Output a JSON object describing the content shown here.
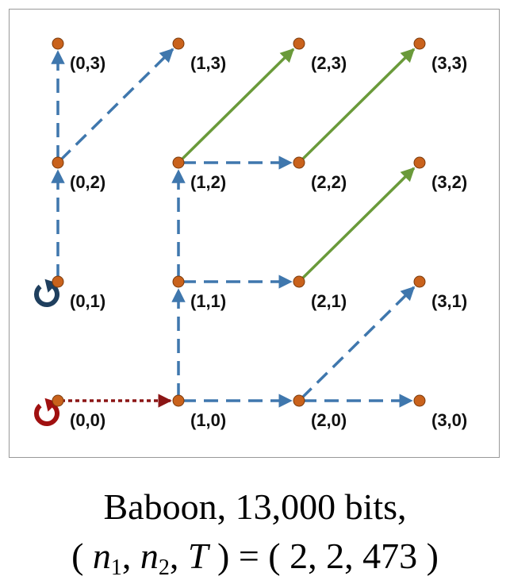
{
  "diagram": {
    "colors": {
      "frame": "#999999",
      "node": "#c9621c",
      "dashed_edge": "#3f77ad",
      "solid_edge": "#6a9a3a",
      "dotted_edge": "#8b1515",
      "loop_dark": "#1f3f5e",
      "loop_red": "#a01010"
    },
    "nodes": [
      {
        "i": 0,
        "j": 0,
        "label": "(0,0)"
      },
      {
        "i": 1,
        "j": 0,
        "label": "(1,0)"
      },
      {
        "i": 2,
        "j": 0,
        "label": "(2,0)"
      },
      {
        "i": 3,
        "j": 0,
        "label": "(3,0)"
      },
      {
        "i": 0,
        "j": 1,
        "label": "(0,1)"
      },
      {
        "i": 1,
        "j": 1,
        "label": "(1,1)"
      },
      {
        "i": 2,
        "j": 1,
        "label": "(2,1)"
      },
      {
        "i": 3,
        "j": 1,
        "label": "(3,1)"
      },
      {
        "i": 0,
        "j": 2,
        "label": "(0,2)"
      },
      {
        "i": 1,
        "j": 2,
        "label": "(1,2)"
      },
      {
        "i": 2,
        "j": 2,
        "label": "(2,2)"
      },
      {
        "i": 3,
        "j": 2,
        "label": "(3,2)"
      },
      {
        "i": 0,
        "j": 3,
        "label": "(0,3)"
      },
      {
        "i": 1,
        "j": 3,
        "label": "(1,3)"
      },
      {
        "i": 2,
        "j": 3,
        "label": "(2,3)"
      },
      {
        "i": 3,
        "j": 3,
        "label": "(3,3)"
      }
    ],
    "edges": [
      {
        "from": [
          0,
          0
        ],
        "to": [
          1,
          0
        ],
        "style": "dotted"
      },
      {
        "from": [
          1,
          0
        ],
        "to": [
          2,
          0
        ],
        "style": "dashed"
      },
      {
        "from": [
          2,
          0
        ],
        "to": [
          3,
          0
        ],
        "style": "dashed"
      },
      {
        "from": [
          2,
          0
        ],
        "to": [
          3,
          1
        ],
        "style": "dashed"
      },
      {
        "from": [
          1,
          0
        ],
        "to": [
          1,
          1
        ],
        "style": "dashed"
      },
      {
        "from": [
          1,
          1
        ],
        "to": [
          2,
          1
        ],
        "style": "dashed"
      },
      {
        "from": [
          1,
          1
        ],
        "to": [
          1,
          2
        ],
        "style": "dashed"
      },
      {
        "from": [
          1,
          2
        ],
        "to": [
          2,
          2
        ],
        "style": "dashed"
      },
      {
        "from": [
          0,
          1
        ],
        "to": [
          0,
          2
        ],
        "style": "dashed"
      },
      {
        "from": [
          0,
          2
        ],
        "to": [
          0,
          3
        ],
        "style": "dashed"
      },
      {
        "from": [
          0,
          2
        ],
        "to": [
          1,
          3
        ],
        "style": "dashed"
      },
      {
        "from": [
          1,
          2
        ],
        "to": [
          2,
          3
        ],
        "style": "solid"
      },
      {
        "from": [
          2,
          2
        ],
        "to": [
          3,
          3
        ],
        "style": "solid"
      },
      {
        "from": [
          2,
          1
        ],
        "to": [
          3,
          2
        ],
        "style": "solid"
      }
    ],
    "loops": [
      {
        "at": [
          0,
          0
        ],
        "color": "loop_red"
      },
      {
        "at": [
          0,
          1
        ],
        "color": "loop_dark"
      }
    ]
  },
  "caption": {
    "line1": "Baboon, 13,000 bits,",
    "open": "(",
    "n1_base": "n",
    "n1_sub": "1",
    "comma1": ",",
    "n2_base": "n",
    "n2_sub": "2",
    "comma2": ",",
    "T": "T",
    "close": ")",
    "equals": " = ",
    "values": "( 2, 2, 473 )"
  }
}
